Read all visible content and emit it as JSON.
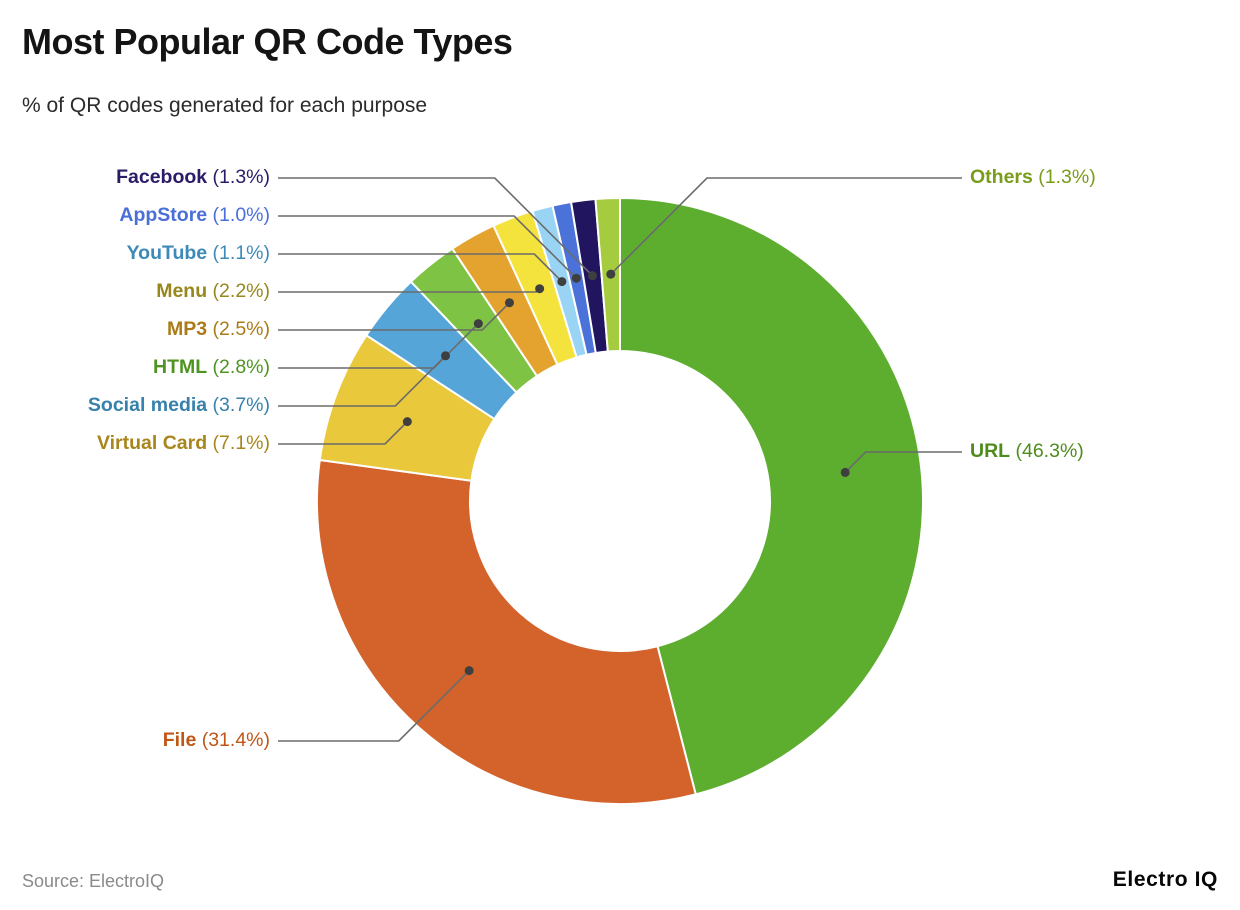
{
  "header": {
    "title": "Most Popular QR Code Types",
    "subtitle": "% of QR codes generated for each purpose"
  },
  "footer": {
    "source": "Source: ElectroIQ",
    "brand": "Electro IQ"
  },
  "chart_data": {
    "type": "pie",
    "variant": "donut",
    "title": "Most Popular QR Code Types",
    "subtitle": "% of QR codes generated for each purpose",
    "unit": "%",
    "direction": "clockwise",
    "start_angle": "12 o'clock",
    "slices": [
      {
        "label": "URL",
        "value": 46.3,
        "display": "(46.3%)",
        "color": "#5dad2f",
        "label_color": "#4f8c1d"
      },
      {
        "label": "File",
        "value": 31.4,
        "display": "(31.4%)",
        "color": "#d4632b",
        "label_color": "#c05717"
      },
      {
        "label": "Virtual Card",
        "value": 7.1,
        "display": "(7.1%)",
        "color": "#e9c83b",
        "label_color": "#a8861b"
      },
      {
        "label": "Social media",
        "value": 3.7,
        "display": "(3.7%)",
        "color": "#55a5d8",
        "label_color": "#3781ac"
      },
      {
        "label": "HTML",
        "value": 2.8,
        "display": "(2.8%)",
        "color": "#7ec344",
        "label_color": "#4f9422"
      },
      {
        "label": "MP3",
        "value": 2.5,
        "display": "(2.5%)",
        "color": "#e4a22f",
        "label_color": "#aa7b16"
      },
      {
        "label": "Menu",
        "value": 2.2,
        "display": "(2.2%)",
        "color": "#f4e33d",
        "label_color": "#97871c"
      },
      {
        "label": "YouTube",
        "value": 1.1,
        "display": "(1.1%)",
        "color": "#9ad4f5",
        "label_color": "#3d8ab8"
      },
      {
        "label": "AppStore",
        "value": 1.0,
        "display": "(1.0%)",
        "color": "#4a72d8",
        "label_color": "#4a6fd8"
      },
      {
        "label": "Facebook",
        "value": 1.3,
        "display": "(1.3%)",
        "color": "#221560",
        "label_color": "#2b1b69"
      },
      {
        "label": "Others",
        "value": 1.3,
        "display": "(1.3%)",
        "color": "#a5cb3e",
        "label_color": "#7a9c1b"
      }
    ]
  }
}
